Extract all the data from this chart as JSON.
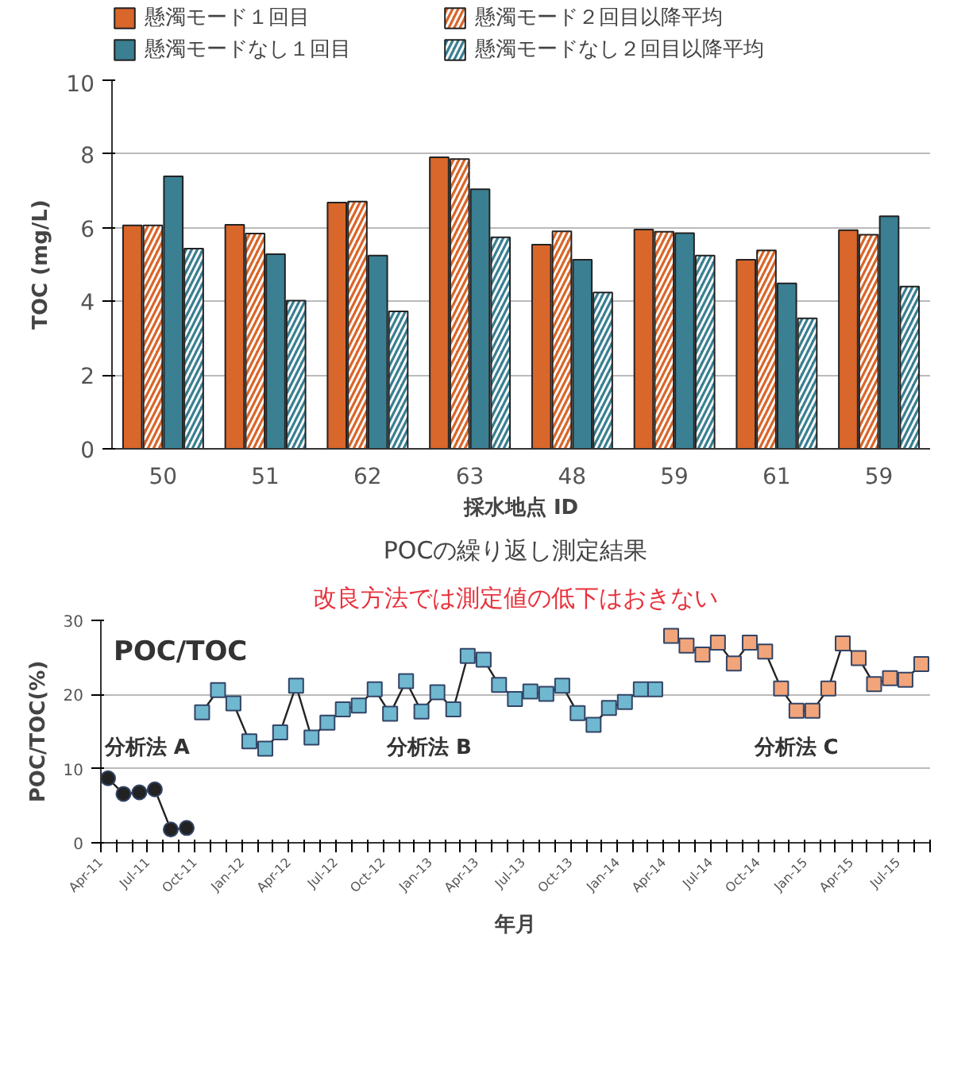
{
  "chart_data": [
    {
      "type": "bar",
      "ylabel": "TOC (mg/L)",
      "xlabel": "採水地点 ID",
      "categories": [
        "50",
        "51",
        "62",
        "63",
        "48",
        "59",
        "61",
        "59"
      ],
      "series": [
        {
          "name": "懸濁モード１回目",
          "color": "#d9662a",
          "values": [
            6.06,
            6.08,
            6.68,
            7.91,
            5.54,
            5.95,
            5.13,
            5.93
          ]
        },
        {
          "name": "懸濁モード２回目以降平均",
          "color": "#d9662a",
          "values": [
            6.06,
            5.84,
            6.71,
            7.86,
            5.9,
            5.89,
            5.38,
            5.81
          ]
        },
        {
          "name": "懸濁モードなし１回目",
          "color": "#3a7f92",
          "values": [
            7.39,
            5.28,
            5.24,
            7.04,
            5.13,
            5.85,
            4.49,
            6.31
          ]
        },
        {
          "name": "懸濁モードなし２回目以降平均",
          "color": "#3a7f92",
          "values": [
            5.43,
            4.02,
            3.73,
            5.74,
            4.24,
            5.24,
            3.54,
            4.4
          ]
        }
      ],
      "ylim": [
        0,
        10
      ],
      "yticks": [
        0,
        2,
        4,
        6,
        8,
        10
      ],
      "grid": "y",
      "legend": "top"
    },
    {
      "type": "line",
      "title": "POCの繰り返し測定結果",
      "subtitle": "改良方法では測定値の低下はおきない",
      "ylabel": "POC/TOC(%)",
      "xlabel": "年月",
      "annotations": [
        "POC/TOC"
      ],
      "series": [
        {
          "name": "分析法 A",
          "color": "#222222",
          "marker": "circle",
          "x": [
            "2011-04-15",
            "2011-05-15",
            "2011-06-15",
            "2011-07-15",
            "2011-08-15",
            "2011-09-15"
          ],
          "values": [
            8.7,
            6.6,
            6.8,
            7.2,
            1.8,
            2.0
          ]
        },
        {
          "name": "分析法 B",
          "color": "#6fb8d0",
          "marker": "square",
          "x": [
            "2011-10-15",
            "2011-11-15",
            "2011-12-15",
            "2012-01-15",
            "2012-02-15",
            "2012-03-15",
            "2012-04-15",
            "2012-05-15",
            "2012-06-15",
            "2012-07-15",
            "2012-08-15",
            "2012-09-15",
            "2012-10-15",
            "2012-11-15",
            "2012-12-15",
            "2013-01-15",
            "2013-02-15",
            "2013-03-15",
            "2013-04-15",
            "2013-05-15",
            "2013-06-15",
            "2013-07-15",
            "2013-08-15",
            "2013-09-15",
            "2013-10-15",
            "2013-11-15",
            "2013-12-15",
            "2014-01-15",
            "2014-02-15",
            "2014-03-15"
          ],
          "values": [
            17.6,
            20.6,
            18.8,
            13.7,
            12.7,
            14.9,
            21.2,
            14.2,
            16.2,
            18.0,
            18.5,
            20.7,
            17.4,
            21.8,
            17.7,
            20.3,
            18.0,
            25.2,
            24.7,
            21.3,
            19.4,
            20.4,
            20.1,
            21.2,
            17.5,
            15.9,
            18.2,
            19.0,
            20.7,
            20.7
          ]
        },
        {
          "name": "分析法 C",
          "color": "#f2a57a",
          "marker": "square",
          "x": [
            "2014-04-15",
            "2014-05-15",
            "2014-06-15",
            "2014-07-15",
            "2014-08-15",
            "2014-09-15",
            "2014-10-15",
            "2014-11-15",
            "2014-12-15",
            "2015-01-15",
            "2015-02-15",
            "2015-03-15",
            "2015-04-15",
            "2015-05-15",
            "2015-06-15",
            "2015-07-15",
            "2015-08-15"
          ],
          "values": [
            27.9,
            26.6,
            25.4,
            27.0,
            24.2,
            27.0,
            25.8,
            20.8,
            17.8,
            17.8,
            20.8,
            26.9,
            24.9,
            21.4,
            22.2,
            22.0,
            24.1
          ]
        }
      ],
      "xlim": [
        "2011-04-01",
        "2015-09-01"
      ],
      "xticks": [
        {
          "value": "2011-04-01",
          "label": "Apr-11"
        },
        {
          "value": "2011-05-01",
          "label": null
        },
        {
          "value": "2011-06-01",
          "label": null
        },
        {
          "value": "2011-07-01",
          "label": "Jul-11"
        },
        {
          "value": "2011-08-01",
          "label": null
        },
        {
          "value": "2011-09-01",
          "label": null
        },
        {
          "value": "2011-10-01",
          "label": "Oct-11"
        },
        {
          "value": "2011-11-01",
          "label": null
        },
        {
          "value": "2011-12-01",
          "label": null
        },
        {
          "value": "2012-01-01",
          "label": "Jan-12"
        },
        {
          "value": "2012-02-01",
          "label": null
        },
        {
          "value": "2012-03-01",
          "label": null
        },
        {
          "value": "2012-04-01",
          "label": "Apr-12"
        },
        {
          "value": "2012-05-01",
          "label": null
        },
        {
          "value": "2012-06-01",
          "label": null
        },
        {
          "value": "2012-07-01",
          "label": "Jul-12"
        },
        {
          "value": "2012-08-01",
          "label": null
        },
        {
          "value": "2012-09-01",
          "label": null
        },
        {
          "value": "2012-10-01",
          "label": "Oct-12"
        },
        {
          "value": "2012-11-01",
          "label": null
        },
        {
          "value": "2012-12-01",
          "label": null
        },
        {
          "value": "2013-01-01",
          "label": "Jan-13"
        },
        {
          "value": "2013-02-01",
          "label": null
        },
        {
          "value": "2013-03-01",
          "label": null
        },
        {
          "value": "2013-04-01",
          "label": "Apr-13"
        },
        {
          "value": "2013-05-01",
          "label": null
        },
        {
          "value": "2013-06-01",
          "label": null
        },
        {
          "value": "2013-07-01",
          "label": "Jul-13"
        },
        {
          "value": "2013-08-01",
          "label": null
        },
        {
          "value": "2013-09-01",
          "label": null
        },
        {
          "value": "2013-10-01",
          "label": "Oct-13"
        },
        {
          "value": "2013-11-01",
          "label": null
        },
        {
          "value": "2013-12-01",
          "label": null
        },
        {
          "value": "2014-01-01",
          "label": "Jan-14"
        },
        {
          "value": "2014-02-01",
          "label": null
        },
        {
          "value": "2014-03-01",
          "label": null
        },
        {
          "value": "2014-04-01",
          "label": "Apr-14"
        },
        {
          "value": "2014-05-01",
          "label": null
        },
        {
          "value": "2014-06-01",
          "label": null
        },
        {
          "value": "2014-07-01",
          "label": "Jul-14"
        },
        {
          "value": "2014-08-01",
          "label": null
        },
        {
          "value": "2014-09-01",
          "label": null
        },
        {
          "value": "2014-10-01",
          "label": "Oct-14"
        },
        {
          "value": "2014-11-01",
          "label": null
        },
        {
          "value": "2014-12-01",
          "label": null
        },
        {
          "value": "2015-01-01",
          "label": "Jan-15"
        },
        {
          "value": "2015-02-01",
          "label": null
        },
        {
          "value": "2015-03-01",
          "label": null
        },
        {
          "value": "2015-04-01",
          "label": "Apr-15"
        },
        {
          "value": "2015-05-01",
          "label": null
        },
        {
          "value": "2015-06-01",
          "label": null
        },
        {
          "value": "2015-07-01",
          "label": "Jul-15"
        },
        {
          "value": "2015-08-01",
          "label": null
        },
        {
          "value": "2015-09-01",
          "label": null
        }
      ],
      "ylim": [
        0,
        30
      ],
      "yticks": [
        0,
        10,
        20,
        30
      ],
      "grid": "y",
      "legend": false
    }
  ]
}
